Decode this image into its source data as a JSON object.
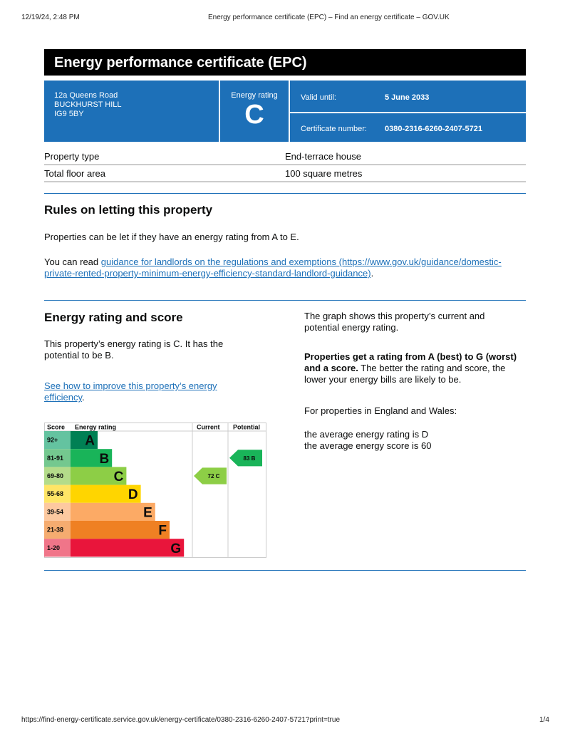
{
  "print_header": {
    "date": "12/19/24, 2:48 PM",
    "title": "Energy performance certificate (EPC) – Find an energy certificate – GOV.UK"
  },
  "print_footer": {
    "url": "https://find-energy-certificate.service.gov.uk/energy-certificate/0380-2316-6260-2407-5721?print=true",
    "page": "1/4"
  },
  "title": "Energy performance certificate (EPC)",
  "address": [
    "12a Queens Road",
    "BUCKHURST HILL",
    "IG9 5BY"
  ],
  "rating_label": "Energy rating",
  "rating": "C",
  "valid_label": "Valid until:",
  "valid_value": "5 June 2033",
  "cert_label": "Certificate number:",
  "cert_value": "0380-2316-6260-2407-5721",
  "property": [
    {
      "k": "Property type",
      "v": "End-terrace house"
    },
    {
      "k": "Total floor area",
      "v": "100 square metres"
    }
  ],
  "rules": {
    "heading": "Rules on letting this property",
    "p1": "Properties can be let if they have an energy rating from A to E.",
    "p2_pre": "You can read ",
    "p2_link": "guidance for landlords on the regulations and exemptions (https://www.gov.uk/guidance/domestic-private-rented-property-minimum-energy-efficiency-standard-landlord-guidance)",
    "p2_post": "."
  },
  "score": {
    "heading": "Energy rating and score",
    "p1": "This property’s energy rating is C. It has the potential to be B.",
    "link": "See how to improve this property’s energy efficiency",
    "link_post": ".",
    "r1": "The graph shows this property’s current and potential energy rating.",
    "r2_bold": "Properties get a rating from A (best) to G (worst) and a score.",
    "r2": " The better the rating and score, the lower your energy bills are likely to be.",
    "r3": "For properties in England and Wales:",
    "r4": "the average energy rating is D",
    "r5": "the average energy score is 60"
  },
  "chart_data": {
    "type": "bar",
    "headers": [
      "Score",
      "Energy rating",
      "Current",
      "Potential"
    ],
    "bands": [
      {
        "score": "92+",
        "letter": "A",
        "color": "#008054",
        "light": "#64c3a0"
      },
      {
        "score": "81-91",
        "letter": "B",
        "color": "#19b459",
        "light": "#74c88f"
      },
      {
        "score": "69-80",
        "letter": "C",
        "color": "#8dce46",
        "light": "#b4dc8a"
      },
      {
        "score": "55-68",
        "letter": "D",
        "color": "#ffd500",
        "light": "#ffe566"
      },
      {
        "score": "39-54",
        "letter": "E",
        "color": "#fcaa65",
        "light": "#fdc9a0"
      },
      {
        "score": "21-38",
        "letter": "F",
        "color": "#ef8023",
        "light": "#f5ac70"
      },
      {
        "score": "1-20",
        "letter": "G",
        "color": "#e9153b",
        "light": "#f07589"
      }
    ],
    "current": {
      "score": 72,
      "letter": "C",
      "label": "72 C",
      "band": 2
    },
    "potential": {
      "score": 83,
      "letter": "B",
      "label": "83 B",
      "band": 1
    }
  }
}
